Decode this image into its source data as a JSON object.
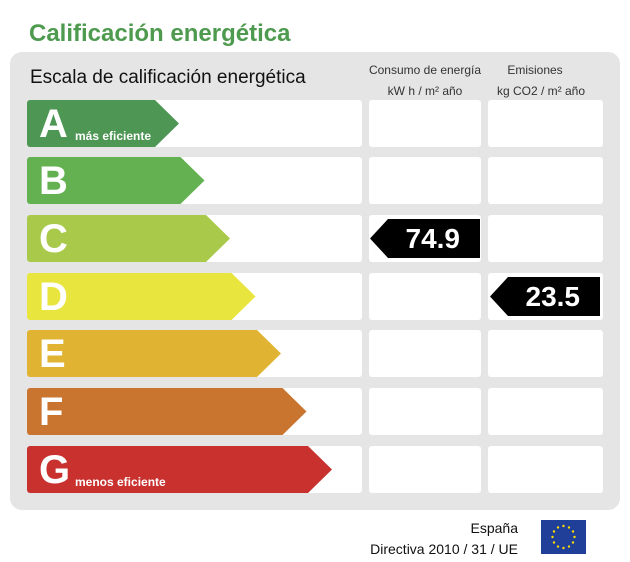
{
  "title": "Calificación energética",
  "scale_title": "Escala de calificación energética",
  "columns": [
    {
      "line1": "Consumo de energía",
      "line2": "kW h / m² año"
    },
    {
      "line1": "Emisiones",
      "line2": "kg CO2 / m² año"
    }
  ],
  "ratings": [
    {
      "letter": "A",
      "sub": "más eficiente",
      "color": "#4e9654"
    },
    {
      "letter": "B",
      "sub": "",
      "color": "#63b150"
    },
    {
      "letter": "C",
      "sub": "",
      "color": "#a8c94a"
    },
    {
      "letter": "D",
      "sub": "",
      "color": "#e8e53e"
    },
    {
      "letter": "E",
      "sub": "",
      "color": "#e0b333"
    },
    {
      "letter": "F",
      "sub": "",
      "color": "#c97530"
    },
    {
      "letter": "G",
      "sub": "menos eficiente",
      "color": "#c9312f"
    }
  ],
  "consumo": {
    "rating": "C",
    "value": "74.9"
  },
  "emisiones": {
    "rating": "D",
    "value": "23.5"
  },
  "footer": {
    "country": "España",
    "directive": "Directiva 2010 / 31 / UE"
  }
}
